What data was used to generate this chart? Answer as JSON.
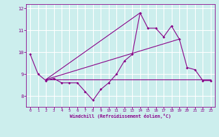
{
  "title": "",
  "xlabel": "Windchill (Refroidissement éolien,°C)",
  "xlim": [
    -0.5,
    23.5
  ],
  "ylim": [
    7.5,
    12.2
  ],
  "yticks": [
    8,
    9,
    10,
    11,
    12
  ],
  "xticks": [
    0,
    1,
    2,
    3,
    4,
    5,
    6,
    7,
    8,
    9,
    10,
    11,
    12,
    13,
    14,
    15,
    16,
    17,
    18,
    19,
    20,
    21,
    22,
    23
  ],
  "background_color": "#cceeed",
  "grid_color": "#ffffff",
  "line_color": "#880088",
  "series": {
    "main": {
      "x": [
        0,
        1,
        2,
        3,
        4,
        5,
        6,
        7,
        8,
        9,
        10,
        11,
        12,
        13,
        14,
        15,
        16,
        17,
        18,
        19,
        20,
        21,
        22,
        23
      ],
      "y": [
        9.9,
        9.0,
        8.7,
        8.8,
        8.6,
        8.6,
        8.6,
        8.2,
        7.8,
        8.3,
        8.6,
        9.0,
        9.6,
        9.9,
        11.8,
        11.1,
        11.1,
        10.7,
        11.2,
        10.6,
        9.3,
        9.2,
        8.7,
        8.7
      ]
    },
    "flat": {
      "x": [
        2,
        23
      ],
      "y": [
        8.75,
        8.75
      ]
    },
    "trend1": {
      "x": [
        2,
        19
      ],
      "y": [
        8.75,
        10.6
      ]
    },
    "trend2": {
      "x": [
        2,
        14
      ],
      "y": [
        8.75,
        11.8
      ]
    }
  }
}
